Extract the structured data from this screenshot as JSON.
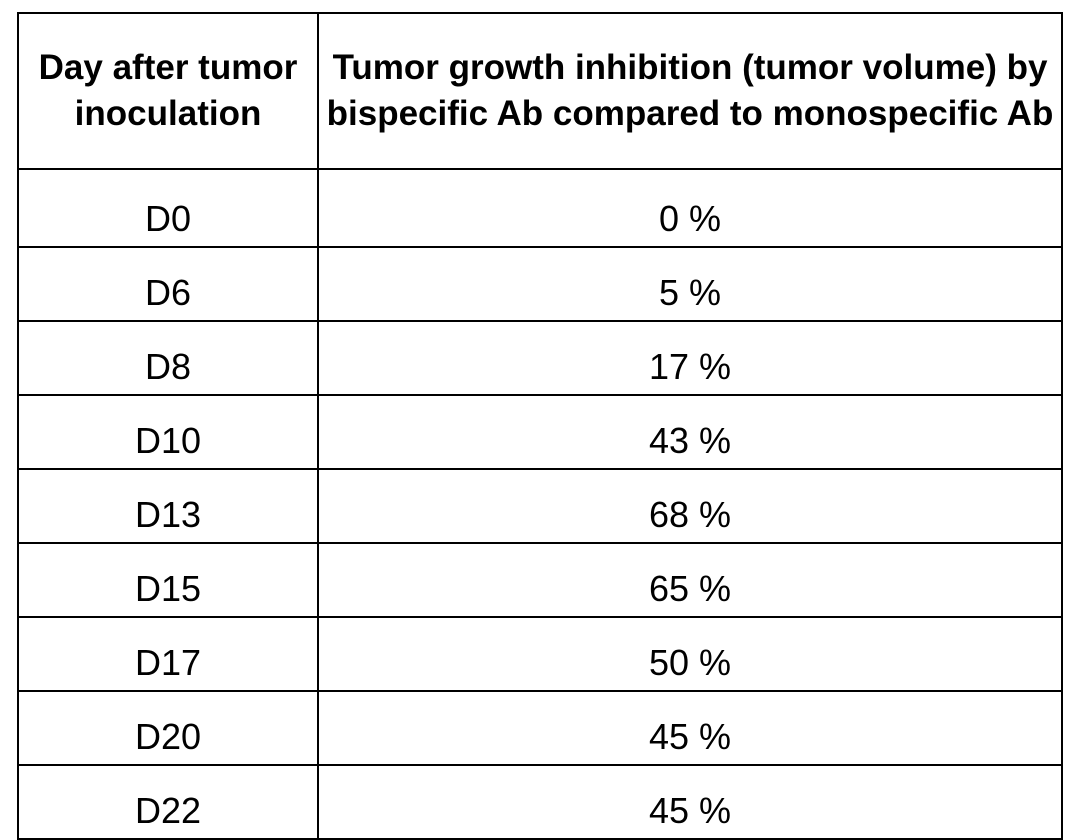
{
  "table": {
    "headers": {
      "day": "Day after tumor inoculation",
      "inhibition": "Tumor growth inhibition (tumor volume) by bispecific Ab compared to monospecific Ab"
    },
    "rows": [
      {
        "day": "D0",
        "value": "0 %"
      },
      {
        "day": "D6",
        "value": "5 %"
      },
      {
        "day": "D8",
        "value": "17 %"
      },
      {
        "day": "D10",
        "value": "43 %"
      },
      {
        "day": "D13",
        "value": "68 %"
      },
      {
        "day": "D15",
        "value": "65 %"
      },
      {
        "day": "D17",
        "value": "50 %"
      },
      {
        "day": "D20",
        "value": "45 %"
      },
      {
        "day": "D22",
        "value": "45 %"
      }
    ]
  }
}
